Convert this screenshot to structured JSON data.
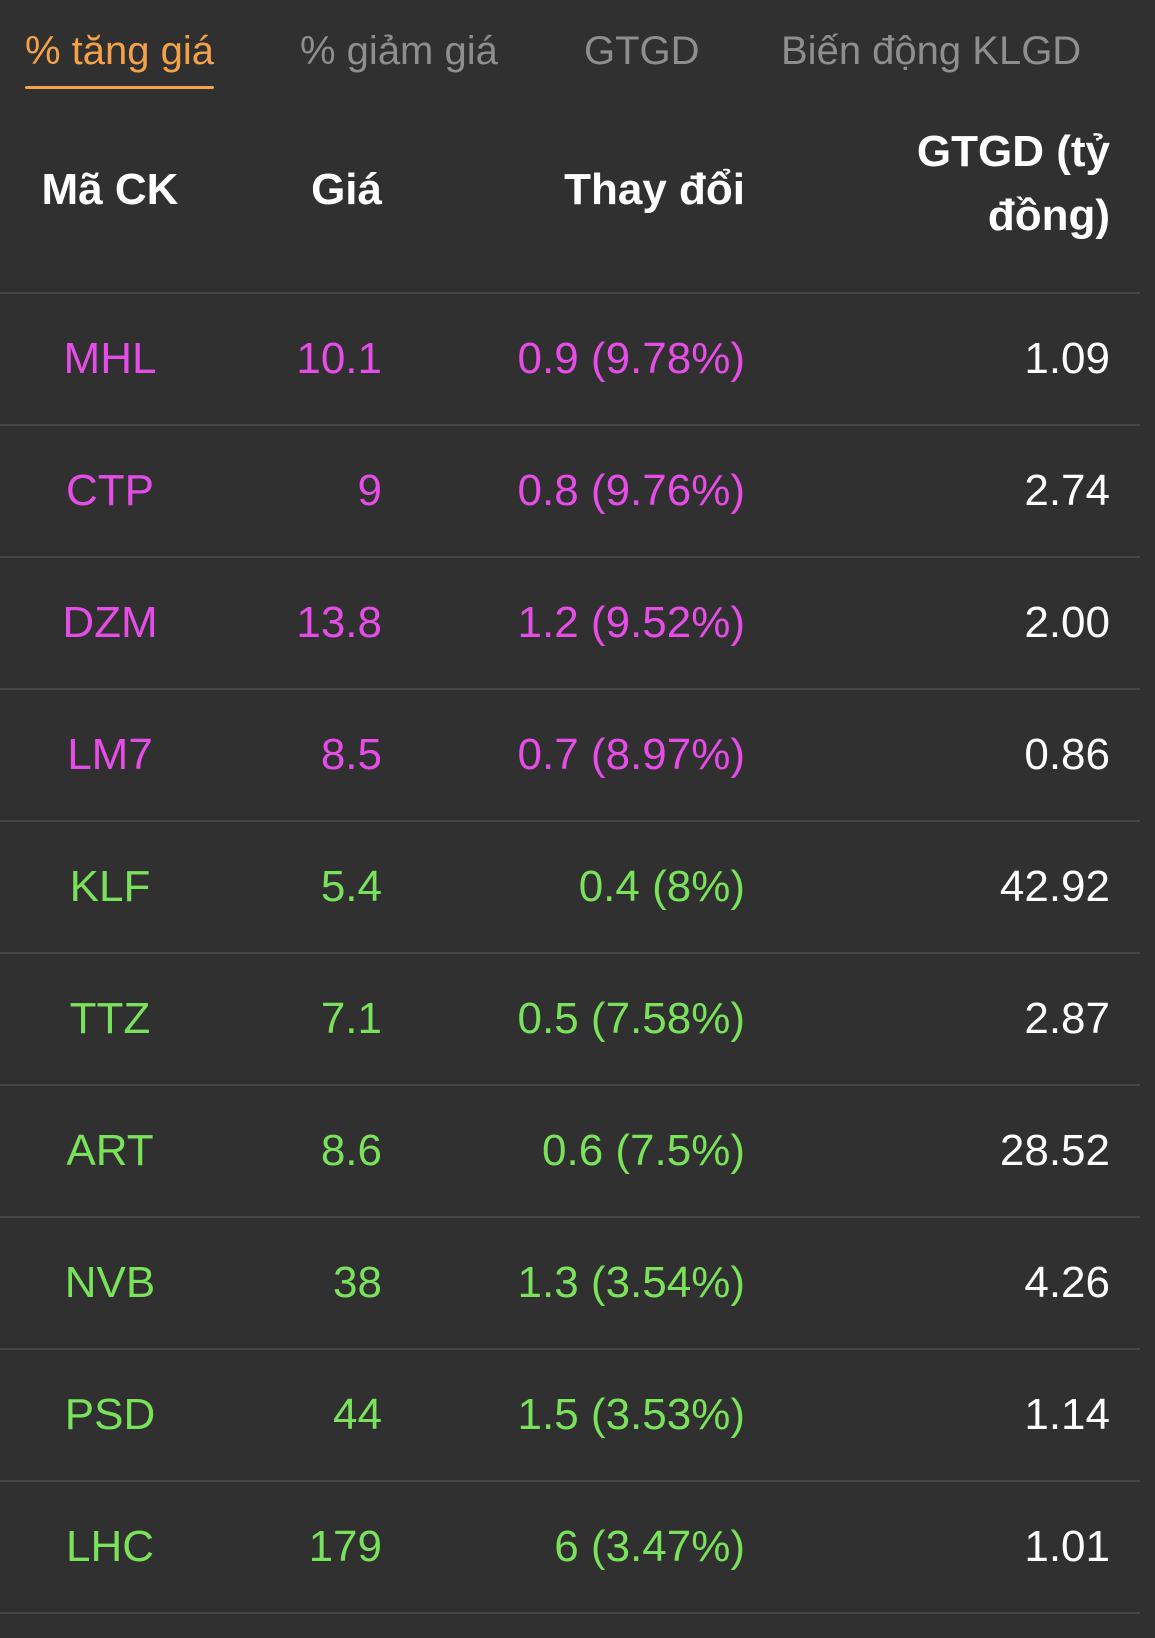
{
  "tabs": [
    {
      "label": "% tăng giá",
      "active": true
    },
    {
      "label": "% giảm giá",
      "active": false
    },
    {
      "label": "GTGD",
      "active": false
    },
    {
      "label": "Biến động KLGD",
      "active": false
    }
  ],
  "table": {
    "headers": {
      "symbol": "Mã CK",
      "price": "Giá",
      "change": "Thay đổi",
      "value_line1": "GTGD (tỷ",
      "value_line2": "đồng)"
    },
    "rows": [
      {
        "symbol": "MHL",
        "price": "10.1",
        "change": "0.9 (9.78%)",
        "value": "1.09",
        "status": "ceiling"
      },
      {
        "symbol": "CTP",
        "price": "9",
        "change": "0.8 (9.76%)",
        "value": "2.74",
        "status": "ceiling"
      },
      {
        "symbol": "DZM",
        "price": "13.8",
        "change": "1.2 (9.52%)",
        "value": "2.00",
        "status": "ceiling"
      },
      {
        "symbol": "LM7",
        "price": "8.5",
        "change": "0.7 (8.97%)",
        "value": "0.86",
        "status": "ceiling"
      },
      {
        "symbol": "KLF",
        "price": "5.4",
        "change": "0.4 (8%)",
        "value": "42.92",
        "status": "up"
      },
      {
        "symbol": "TTZ",
        "price": "7.1",
        "change": "0.5 (7.58%)",
        "value": "2.87",
        "status": "up"
      },
      {
        "symbol": "ART",
        "price": "8.6",
        "change": "0.6 (7.5%)",
        "value": "28.52",
        "status": "up"
      },
      {
        "symbol": "NVB",
        "price": "38",
        "change": "1.3 (3.54%)",
        "value": "4.26",
        "status": "up"
      },
      {
        "symbol": "PSD",
        "price": "44",
        "change": "1.5 (3.53%)",
        "value": "1.14",
        "status": "up"
      },
      {
        "symbol": "LHC",
        "price": "179",
        "change": "6 (3.47%)",
        "value": "1.01",
        "status": "up"
      }
    ]
  },
  "colors": {
    "background": "#303030",
    "active_tab": "#f4a24a",
    "inactive_tab": "#8e8e8e",
    "ceiling": "#e64de6",
    "up": "#7ae25a",
    "divider": "#454545"
  }
}
